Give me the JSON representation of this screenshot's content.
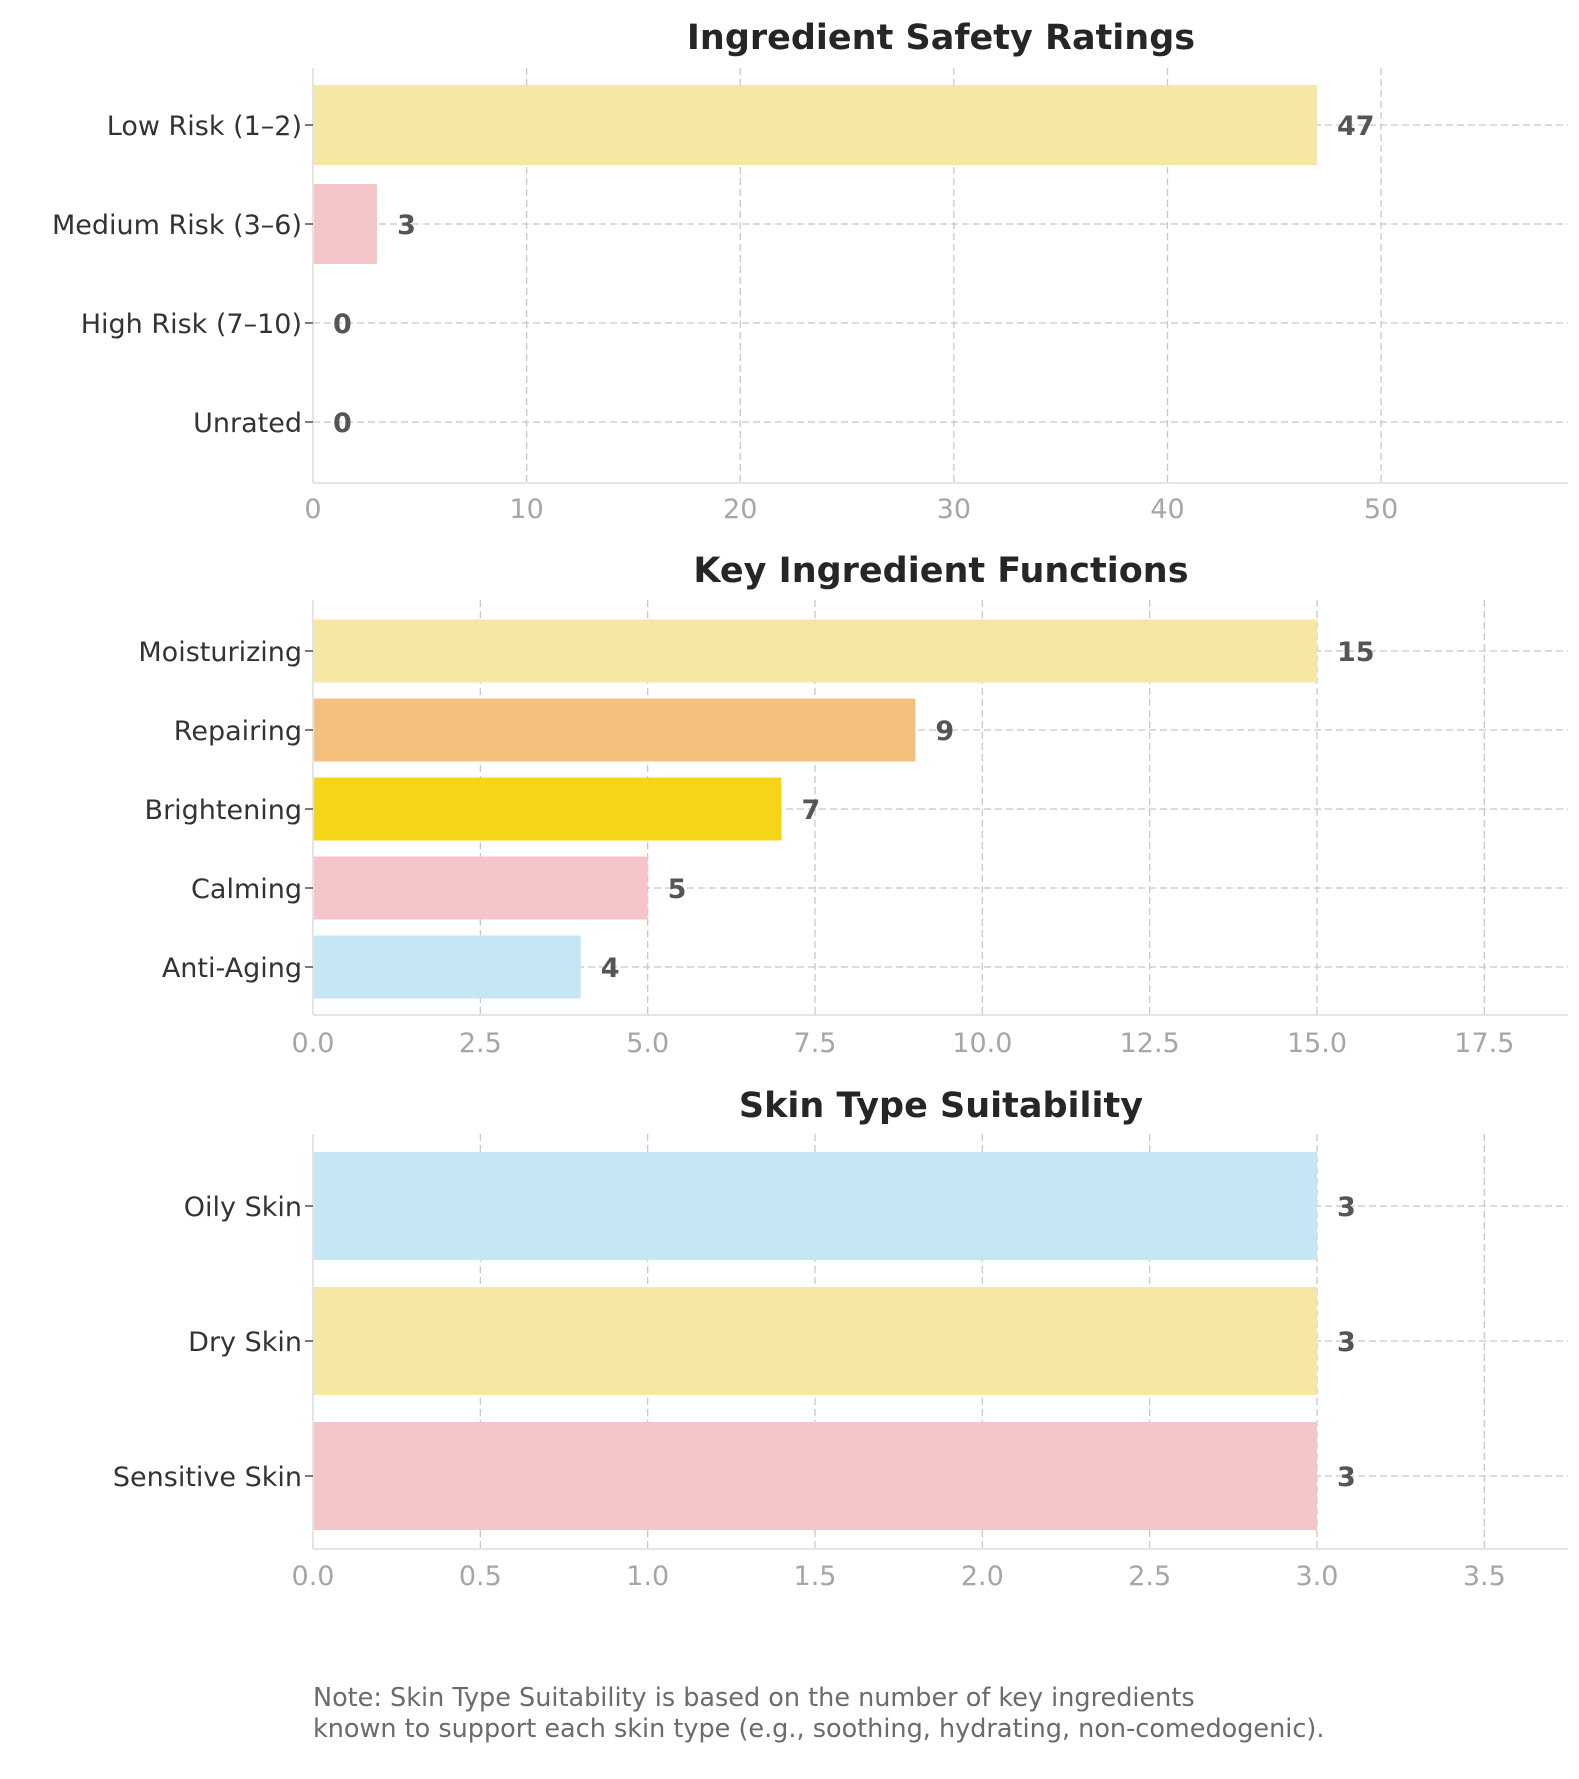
{
  "chart_data": [
    {
      "type": "bar",
      "orientation": "horizontal",
      "title": "Ingredient Safety Ratings",
      "categories": [
        "Low Risk (1–2)",
        "Medium Risk (3–6)",
        "High Risk (7–10)",
        "Unrated"
      ],
      "values": [
        47,
        3,
        0,
        0
      ],
      "colors": [
        "#f7e7a4",
        "#f4c5c9",
        "#f4c5c9",
        "#f4c5c9"
      ],
      "xlim": [
        0,
        58.75
      ],
      "xticks": [
        0,
        10,
        20,
        30,
        40,
        50
      ],
      "tick_labels": [
        "0",
        "10",
        "20",
        "30",
        "40",
        "50"
      ],
      "grid": true
    },
    {
      "type": "bar",
      "orientation": "horizontal",
      "title": "Key Ingredient Functions",
      "categories": [
        "Moisturizing",
        "Repairing",
        "Brightening",
        "Calming",
        "Anti-Aging"
      ],
      "values": [
        15,
        9,
        7,
        5,
        4
      ],
      "colors": [
        "#f7e7a4",
        "#f5c07e",
        "#f6d417",
        "#f4c5c9",
        "#c5e7f3"
      ],
      "xlim": [
        0,
        18.75
      ],
      "xticks": [
        0,
        2.5,
        5,
        7.5,
        10,
        12.5,
        15,
        17.5
      ],
      "tick_labels": [
        "0.0",
        "2.5",
        "5.0",
        "7.5",
        "10.0",
        "12.5",
        "15.0",
        "17.5"
      ],
      "grid": true
    },
    {
      "type": "bar",
      "orientation": "horizontal",
      "title": "Skin Type Suitability",
      "categories": [
        "Oily Skin",
        "Dry Skin",
        "Sensitive Skin"
      ],
      "values": [
        3,
        3,
        3
      ],
      "colors": [
        "#c5e7f3",
        "#f7e7a4",
        "#f4c5c9"
      ],
      "xlim": [
        0,
        3.75
      ],
      "xticks": [
        0,
        0.5,
        1,
        1.5,
        2,
        2.5,
        3,
        3.5
      ],
      "tick_labels": [
        "0.0",
        "0.5",
        "1.0",
        "1.5",
        "2.0",
        "2.5",
        "3.0",
        "3.5"
      ],
      "grid": true
    }
  ],
  "note": {
    "line1": "Note: Skin Type Suitability is based on the number of key ingredients",
    "line2": "known to support each skin type (e.g., soothing, hydrating, non-comedogenic)."
  }
}
